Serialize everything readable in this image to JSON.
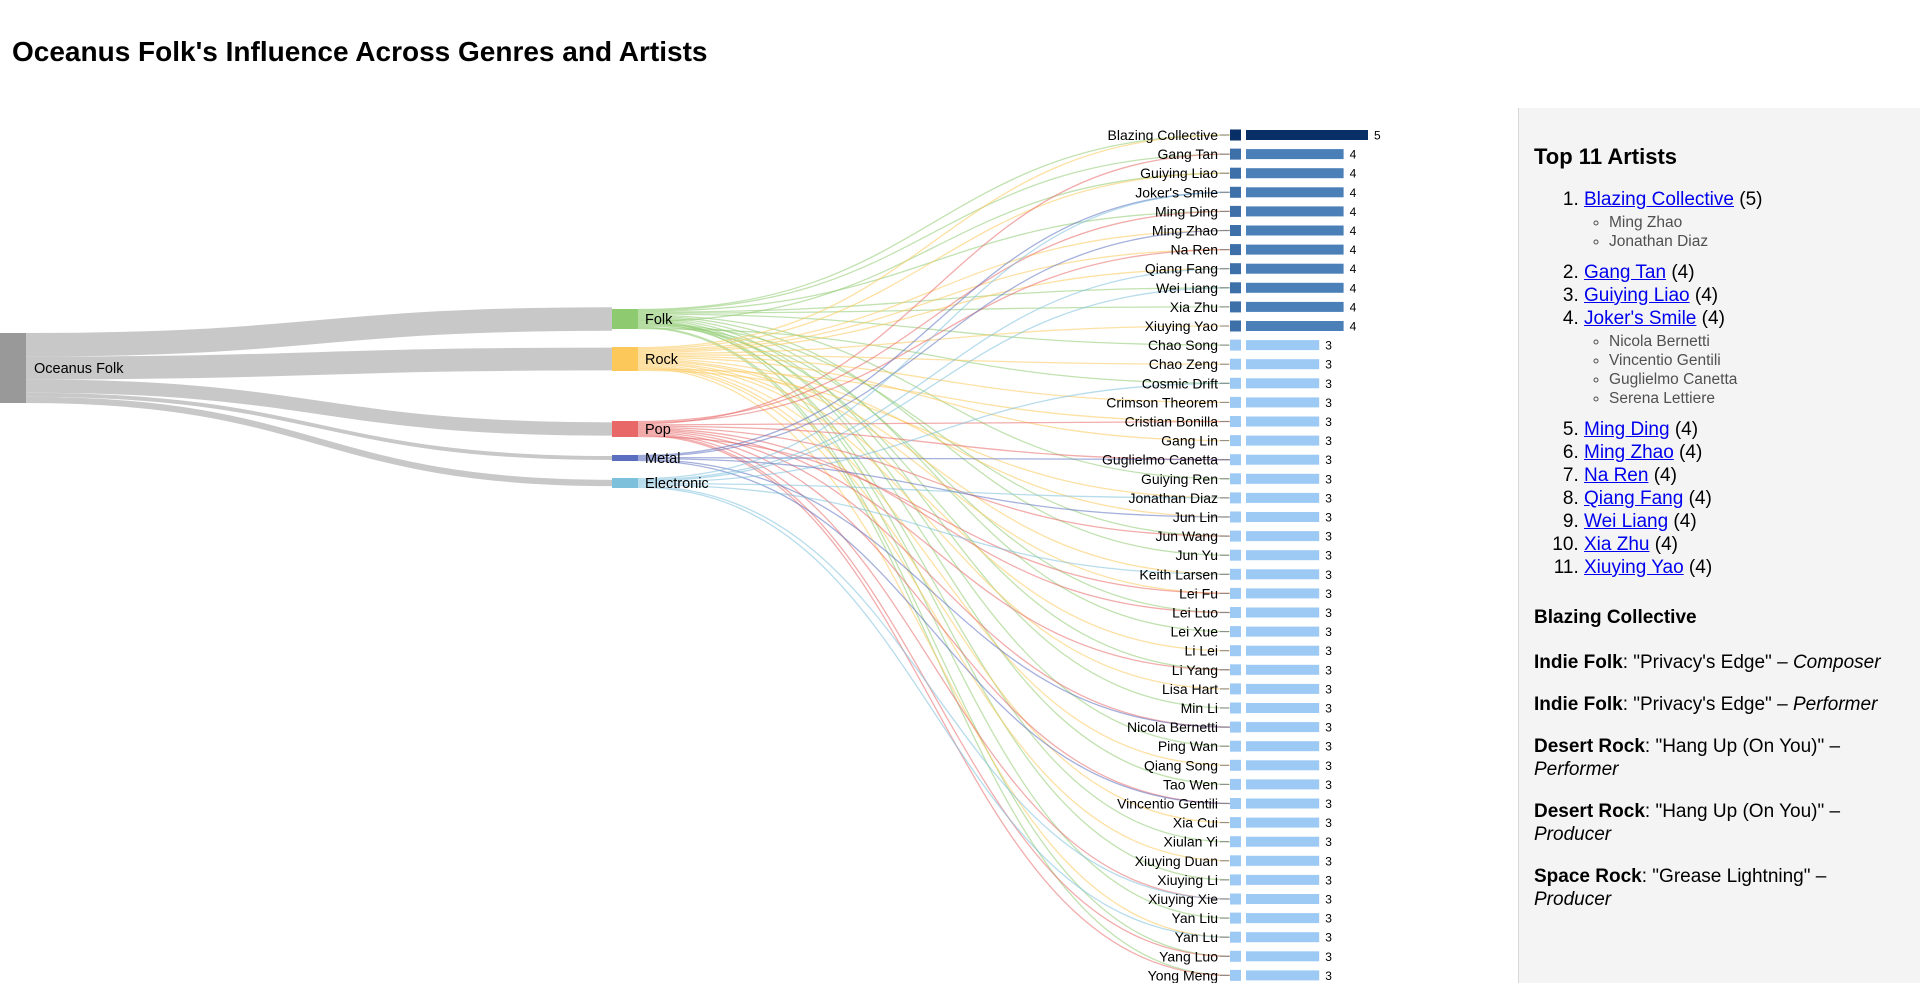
{
  "page": {
    "title": "Oceanus Folk's Influence Across Genres and Artists"
  },
  "colors": {
    "source": "#999999",
    "link": "#c8c8c8",
    "Folk": "#8ecb70",
    "Rock": "#fcc85a",
    "Pop": "#e86868",
    "Metal": "#5b6fc0",
    "Electronic": "#7cc0dc",
    "bar_top": "#082f66",
    "bar_high": "#4a7fb8",
    "bar_base": "#9dcaf5",
    "square_high": "#3d6fa8",
    "square_base": "#9dcaf5"
  },
  "chart_data": {
    "type": "sankey",
    "source": "Oceanus Folk",
    "genres": [
      {
        "name": "Folk",
        "value": 30
      },
      {
        "name": "Rock",
        "value": 29
      },
      {
        "name": "Pop",
        "value": 17
      },
      {
        "name": "Metal",
        "value": 5
      },
      {
        "name": "Electronic",
        "value": 8
      }
    ],
    "artists": [
      {
        "name": "Blazing Collective",
        "value": 5
      },
      {
        "name": "Gang Tan",
        "value": 4
      },
      {
        "name": "Guiying Liao",
        "value": 4
      },
      {
        "name": "Joker's Smile",
        "value": 4
      },
      {
        "name": "Ming Ding",
        "value": 4
      },
      {
        "name": "Ming Zhao",
        "value": 4
      },
      {
        "name": "Na Ren",
        "value": 4
      },
      {
        "name": "Qiang Fang",
        "value": 4
      },
      {
        "name": "Wei Liang",
        "value": 4
      },
      {
        "name": "Xia Zhu",
        "value": 4
      },
      {
        "name": "Xiuying Yao",
        "value": 4
      },
      {
        "name": "Chao Song",
        "value": 3
      },
      {
        "name": "Chao Zeng",
        "value": 3
      },
      {
        "name": "Cosmic Drift",
        "value": 3
      },
      {
        "name": "Crimson Theorem",
        "value": 3
      },
      {
        "name": "Cristian Bonilla",
        "value": 3
      },
      {
        "name": "Gang Lin",
        "value": 3
      },
      {
        "name": "Guglielmo Canetta",
        "value": 3
      },
      {
        "name": "Guiying Ren",
        "value": 3
      },
      {
        "name": "Jonathan Diaz",
        "value": 3
      },
      {
        "name": "Jun Lin",
        "value": 3
      },
      {
        "name": "Jun Wang",
        "value": 3
      },
      {
        "name": "Jun Yu",
        "value": 3
      },
      {
        "name": "Keith Larsen",
        "value": 3
      },
      {
        "name": "Lei Fu",
        "value": 3
      },
      {
        "name": "Lei Luo",
        "value": 3
      },
      {
        "name": "Lei Xue",
        "value": 3
      },
      {
        "name": "Li Lei",
        "value": 3
      },
      {
        "name": "Li Yang",
        "value": 3
      },
      {
        "name": "Lisa Hart",
        "value": 3
      },
      {
        "name": "Min Li",
        "value": 3
      },
      {
        "name": "Nicola Bernetti",
        "value": 3
      },
      {
        "name": "Ping Wan",
        "value": 3
      },
      {
        "name": "Qiang Song",
        "value": 3
      },
      {
        "name": "Tao Wen",
        "value": 3
      },
      {
        "name": "Vincentio Gentili",
        "value": 3
      },
      {
        "name": "Xia Cui",
        "value": 3
      },
      {
        "name": "Xiulan Yi",
        "value": 3
      },
      {
        "name": "Xiuying Duan",
        "value": 3
      },
      {
        "name": "Xiuying Li",
        "value": 3
      },
      {
        "name": "Xiuying Xie",
        "value": 3
      },
      {
        "name": "Yan Liu",
        "value": 3
      },
      {
        "name": "Yan Lu",
        "value": 3
      },
      {
        "name": "Yang Luo",
        "value": 3
      },
      {
        "name": "Yong Meng",
        "value": 3
      }
    ],
    "links": [
      {
        "genre": "Folk",
        "artists": [
          "Blazing Collective",
          "Gang Tan",
          "Ming Ding",
          "Wei Liang",
          "Xia Zhu",
          "Chao Song",
          "Guiying Ren",
          "Jun Yu",
          "Lei Xue",
          "Min Li",
          "Tao Wen",
          "Xiuying Li",
          "Yan Liu",
          "Guiying Liao",
          "Ping Wan",
          "Xiulan Yi",
          "Jun Wang",
          "Lei Luo",
          "Li Yang",
          "Yang Luo",
          "Yong Meng",
          "Cosmic Drift"
        ]
      },
      {
        "genre": "Rock",
        "artists": [
          "Blazing Collective",
          "Guiying Liao",
          "Ming Zhao",
          "Na Ren",
          "Qiang Fang",
          "Xiuying Yao",
          "Chao Zeng",
          "Crimson Theorem",
          "Gang Lin",
          "Jun Lin",
          "Keith Larsen",
          "Lei Fu",
          "Li Lei",
          "Lisa Hart",
          "Qiang Song",
          "Xia Cui",
          "Xiuying Duan",
          "Yan Lu",
          "Cristian Bonilla",
          "Jonathan Diaz"
        ]
      },
      {
        "genre": "Pop",
        "artists": [
          "Ming Ding",
          "Na Ren",
          "Gang Tan",
          "Cristian Bonilla",
          "Guglielmo Canetta",
          "Jun Wang",
          "Lei Luo",
          "Li Yang",
          "Nicola Bernetti",
          "Vincentio Gentili",
          "Xiuying Xie",
          "Yang Luo",
          "Yong Meng",
          "Lei Fu"
        ]
      },
      {
        "genre": "Metal",
        "artists": [
          "Joker's Smile",
          "Ming Zhao",
          "Guglielmo Canetta",
          "Jun Lin",
          "Nicola Bernetti",
          "Vincentio Gentili"
        ]
      },
      {
        "genre": "Electronic",
        "artists": [
          "Joker's Smile",
          "Qiang Fang",
          "Wei Liang",
          "Cosmic Drift",
          "Jonathan Diaz",
          "Keith Larsen",
          "Xiuying Xie",
          "Yan Lu"
        ]
      }
    ]
  },
  "panel": {
    "title": "Top 11 Artists",
    "top_artists": [
      {
        "name": "Blazing Collective",
        "count": "(5)",
        "members": [
          "Ming Zhao",
          "Jonathan Diaz"
        ]
      },
      {
        "name": "Gang Tan",
        "count": "(4)",
        "members": []
      },
      {
        "name": "Guiying Liao",
        "count": "(4)",
        "members": []
      },
      {
        "name": "Joker's Smile",
        "count": "(4)",
        "members": [
          "Nicola Bernetti",
          "Vincentio Gentili",
          "Guglielmo Canetta",
          "Serena Lettiere"
        ]
      },
      {
        "name": "Ming Ding",
        "count": "(4)",
        "members": []
      },
      {
        "name": "Ming Zhao",
        "count": "(4)",
        "members": []
      },
      {
        "name": "Na Ren",
        "count": "(4)",
        "members": []
      },
      {
        "name": "Qiang Fang",
        "count": "(4)",
        "members": []
      },
      {
        "name": "Wei Liang",
        "count": "(4)",
        "members": []
      },
      {
        "name": "Xia Zhu",
        "count": "(4)",
        "members": []
      },
      {
        "name": "Xiuying Yao",
        "count": "(4)",
        "members": []
      }
    ],
    "selected": {
      "name": "Blazing Collective",
      "credits": [
        {
          "genre": "Indie Folk",
          "song": ": \"Privacy's Edge\" – ",
          "role": "Composer"
        },
        {
          "genre": "Indie Folk",
          "song": ": \"Privacy's Edge\" – ",
          "role": "Performer"
        },
        {
          "genre": "Desert Rock",
          "song": ": \"Hang Up (On You)\" – ",
          "role": "Performer"
        },
        {
          "genre": "Desert Rock",
          "song": ": \"Hang Up (On You)\" – ",
          "role": "Producer"
        },
        {
          "genre": "Space Rock",
          "song": ": \"Grease Lightning\" – ",
          "role": "Producer"
        }
      ]
    }
  }
}
